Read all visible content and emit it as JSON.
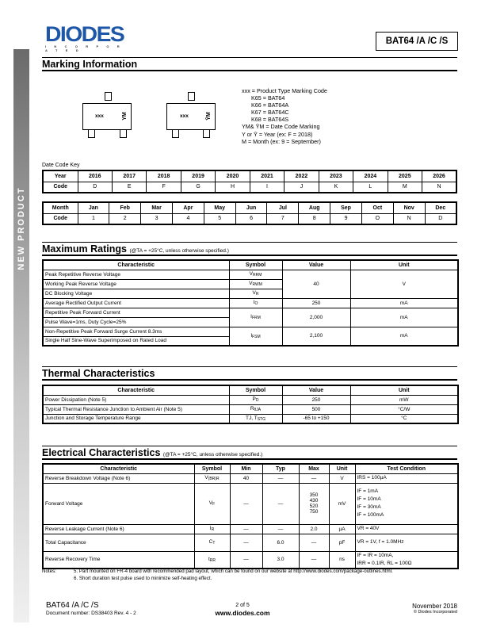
{
  "sidebar": {
    "label": "NEW PRODUCT"
  },
  "logo": {
    "word": "DIODES",
    "sub": "I N C O R P O R A T E D",
    "color": "#1e57a8"
  },
  "header": {
    "part": "BAT64 /A /C /S"
  },
  "marking": {
    "title": "Marking Information",
    "pkg_text": "xxx",
    "pkg_ym": "YM",
    "pkg_ym_bar": "ȲM",
    "legend": [
      "xxx = Product Type Marking Code",
      "K65 = BAT64",
      "K66 = BAT64A",
      "K67 = BAT64C",
      "K68 = BAT64S",
      "YM& ȲM = Date Code Marking",
      "Y or Ȳ = Year (ex: F = 2018)",
      "M = Month (ex: 9 = September)"
    ],
    "date_code_key": "Date Code Key",
    "year_header": "Year",
    "code_header": "Code",
    "month_header": "Month",
    "years": [
      "2016",
      "2017",
      "2018",
      "2019",
      "2020",
      "2021",
      "2022",
      "2023",
      "2024",
      "2025",
      "2026"
    ],
    "year_codes": [
      "D",
      "E",
      "F",
      "G",
      "H",
      "I",
      "J",
      "K",
      "L",
      "M",
      "N"
    ],
    "months": [
      "Jan",
      "Feb",
      "Mar",
      "Apr",
      "May",
      "Jun",
      "Jul",
      "Aug",
      "Sep",
      "Oct",
      "Nov",
      "Dec"
    ],
    "month_codes": [
      "1",
      "2",
      "3",
      "4",
      "5",
      "6",
      "7",
      "8",
      "9",
      "O",
      "N",
      "D"
    ]
  },
  "max_ratings": {
    "title": "Maximum Ratings",
    "cond": "(@TA = +25°C, unless otherwise specified.)",
    "headers": [
      "Characteristic",
      "Symbol",
      "Value",
      "Unit"
    ],
    "rows": [
      {
        "chars": [
          "Peak Repetitive Reverse Voltage",
          "Working Peak Reverse Voltage",
          "DC Blocking Voltage"
        ],
        "symbols": [
          [
            "V",
            "RRM"
          ],
          [
            "V",
            "RWM"
          ],
          [
            "V",
            "R"
          ]
        ],
        "value": "40",
        "unit": "V"
      },
      {
        "chars": [
          "Average Rectified Output Current"
        ],
        "symbols": [
          [
            "I",
            "O"
          ]
        ],
        "value": "250",
        "unit": "mA"
      },
      {
        "chars": [
          "Repetitive Peak Forward Current",
          "Pulse Wave=1ms, Duty Cycle=25%"
        ],
        "symbols": [
          [
            "I",
            "FRM"
          ]
        ],
        "value": "2,000",
        "unit": "mA"
      },
      {
        "chars": [
          "Non-Repetitive Peak Forward Surge Current 8.3ms",
          "Single Half Sine-Wave Superimposed on Rated Load"
        ],
        "symbols": [
          [
            "I",
            "FSM"
          ]
        ],
        "value": "2,100",
        "unit": "mA"
      }
    ]
  },
  "thermal": {
    "title": "Thermal Characteristics",
    "headers": [
      "Characteristic",
      "Symbol",
      "Value",
      "Unit"
    ],
    "rows": [
      {
        "char": "Power Dissipation (Note 5)",
        "sym": "P",
        "sub": "D",
        "value": "250",
        "unit": "mW"
      },
      {
        "char": "Typical Thermal Resistance Junction to Ambient Air (Note 5)",
        "sym": "R",
        "sub": "θJA",
        "value": "500",
        "unit": "°C/W"
      },
      {
        "char": "Junction and Storage Temperature Range",
        "sym": "TJ, T",
        "sub": "STG",
        "value": "-65 to +150",
        "unit": "°C"
      }
    ]
  },
  "electrical": {
    "title": "Electrical Characteristics",
    "cond": "(@TA = +25°C, unless otherwise specified.)",
    "headers": [
      "Characteristic",
      "Symbol",
      "Min",
      "Typ",
      "Max",
      "Unit",
      "Test Condition"
    ],
    "rows": [
      {
        "char": "Reverse Breakdown Voltage (Note 6)",
        "sym": "V",
        "sub": "(BR)R",
        "min": "40",
        "typ": "—",
        "max": [
          "—"
        ],
        "unit": "V",
        "cond": [
          "IRS = 100µA"
        ]
      },
      {
        "char": "Forward Voltage",
        "sym": "V",
        "sub": "F",
        "min": "—",
        "typ": "—",
        "max": [
          "350",
          "430",
          "520",
          "750"
        ],
        "unit": "mV",
        "cond": [
          "IF = 1mA",
          "IF = 10mA",
          "IF = 30mA",
          "IF = 100mA"
        ]
      },
      {
        "char": "Reverse Leakage Current (Note 6)",
        "sym": "I",
        "sub": "R",
        "min": "—",
        "typ": "—",
        "max": [
          "2.0"
        ],
        "unit": "µA",
        "cond": [
          "VR = 40V"
        ]
      },
      {
        "char": "Total Capacitance",
        "sym": "C",
        "sub": "T",
        "min": "—",
        "typ": "6.0",
        "max": [
          "—"
        ],
        "unit": "pF",
        "cond": [
          "VR = 1V, f = 1.0MHz"
        ]
      },
      {
        "char": "Reverse Recovery Time",
        "sym": "t",
        "sub": "RR",
        "min": "—",
        "typ": "3.0",
        "max": [
          "—"
        ],
        "unit": "ns",
        "cond": [
          "IF = IR = 10mA,",
          "IRR = 0.1IR, RL = 100Ω"
        ]
      }
    ]
  },
  "notes": {
    "label": "Notes:",
    "items": [
      "5. Part mounted on FR-4 board with recommended pad layout, which can be found on our website at http://www.diodes.com/package-outlines.html.",
      "6. Short duration test pulse used to minimize self-heating effect."
    ]
  },
  "footer": {
    "part": "BAT64 /A /C /S",
    "doc": "Document number: DS38403 Rev. 4 - 2",
    "page": "2 of 5",
    "site": "www.diodes.com",
    "date": "November 2018",
    "copy": "© Diodes Incorporated"
  }
}
